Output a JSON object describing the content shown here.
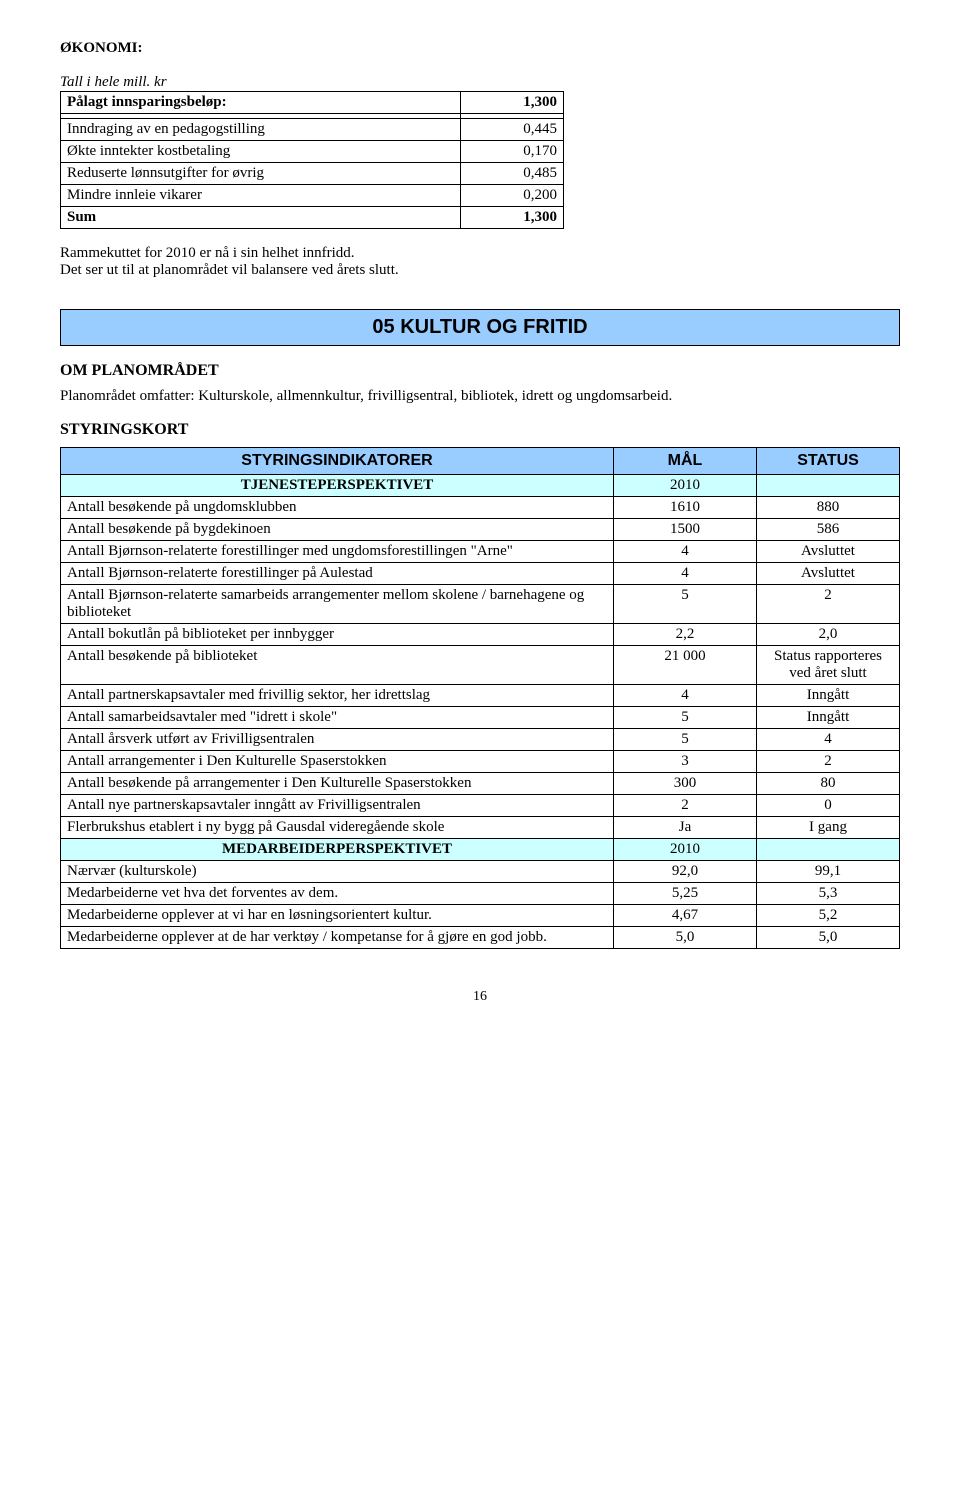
{
  "colors": {
    "section_bg": "#99ccff",
    "subsection_bg": "#ccffff",
    "border": "#000000",
    "text": "#000000",
    "page_bg": "#ffffff"
  },
  "econ": {
    "title": "ØKONOMI:",
    "note": "Tall i hele mill. kr",
    "rows": [
      {
        "label": "Pålagt innsparingsbeløp:",
        "value": "1,300",
        "bold": true
      },
      {
        "label": "",
        "value": ""
      },
      {
        "label": "Inndraging av en pedagogstilling",
        "value": "0,445"
      },
      {
        "label": "Økte inntekter kostbetaling",
        "value": "0,170"
      },
      {
        "label": "Reduserte lønnsutgifter for øvrig",
        "value": "0,485"
      },
      {
        "label": "Mindre innleie vikarer",
        "value": "0,200"
      },
      {
        "label": "Sum",
        "value": "1,300",
        "bold": true
      }
    ],
    "para": "Rammekuttet for 2010 er nå i sin helhet innfridd.\nDet ser ut til at planområdet vil balansere ved årets slutt."
  },
  "section_title": "05 KULTUR OG FRITID",
  "om_head": "OM PLANOMRÅDET",
  "om_text": "Planområdet omfatter: Kulturskole, allmennkultur, frivilligsentral, bibliotek, idrett og ungdomsarbeid.",
  "styr_head": "STYRINGSKORT",
  "indi": {
    "headers": [
      "STYRINGSINDIKATORER",
      "MÅL",
      "STATUS"
    ],
    "sub1": {
      "label": "TJENESTEPERSPEKTIVET",
      "val": "2010"
    },
    "rows1": [
      {
        "l": "Antall besøkende på ungdomsklubben",
        "m": "1610",
        "s": "880"
      },
      {
        "l": "Antall besøkende på bygdekinoen",
        "m": "1500",
        "s": "586"
      },
      {
        "l": "Antall Bjørnson-relaterte forestillinger med ungdomsforestillingen \"Arne\"",
        "m": "4",
        "s": "Avsluttet"
      },
      {
        "l": "Antall Bjørnson-relaterte forestillinger på Aulestad",
        "m": "4",
        "s": "Avsluttet"
      },
      {
        "l": "Antall Bjørnson-relaterte samarbeids arrangementer mellom skolene / barnehagene og biblioteket",
        "m": "5",
        "s": "2"
      },
      {
        "l": "Antall bokutlån på biblioteket per innbygger",
        "m": "2,2",
        "s": "2,0"
      },
      {
        "l": "Antall besøkende på biblioteket",
        "m": "21 000",
        "s": "Status rapporteres ved året slutt"
      },
      {
        "l": "Antall partnerskapsavtaler med frivillig sektor, her idrettslag",
        "m": "4",
        "s": "Inngått"
      },
      {
        "l": "Antall samarbeidsavtaler med \"idrett i skole\"",
        "m": "5",
        "s": "Inngått"
      },
      {
        "l": "Antall årsverk utført av Frivilligsentralen",
        "m": "5",
        "s": "4"
      },
      {
        "l": "Antall arrangementer i Den Kulturelle Spaserstokken",
        "m": "3",
        "s": "2"
      },
      {
        "l": "Antall besøkende på arrangementer i Den Kulturelle Spaserstokken",
        "m": "300",
        "s": "80"
      },
      {
        "l": "Antall nye partnerskapsavtaler inngått av Frivilligsentralen",
        "m": "2",
        "s": "0"
      },
      {
        "l": "Flerbrukshus etablert i ny bygg på Gausdal videregående skole",
        "m": "Ja",
        "s": "I gang"
      }
    ],
    "sub2": {
      "label": "MEDARBEIDERPERSPEKTIVET",
      "val": "2010"
    },
    "rows2": [
      {
        "l": "Nærvær (kulturskole)",
        "m": "92,0",
        "s": "99,1"
      },
      {
        "l": "Medarbeiderne vet hva det forventes av dem.",
        "m": "5,25",
        "s": "5,3"
      },
      {
        "l": "Medarbeiderne opplever at vi har en løsningsorientert kultur.",
        "m": "4,67",
        "s": "5,2"
      },
      {
        "l": "Medarbeiderne opplever at de har verktøy / kompetanse for å gjøre en god jobb.",
        "m": "5,0",
        "s": "5,0"
      }
    ]
  },
  "page_number": "16"
}
